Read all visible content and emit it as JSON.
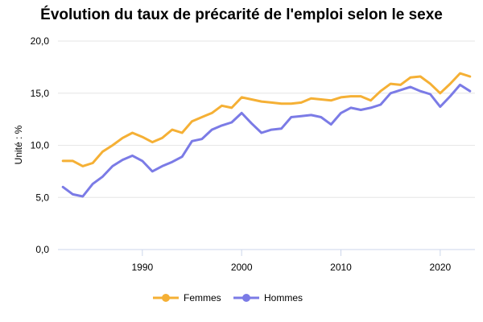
{
  "chart_data": {
    "type": "line",
    "title": "Évolution du taux de précarité de l'emploi selon le sexe",
    "ylabel": "Unité : %",
    "xlabel": "",
    "ylim": [
      0,
      20
    ],
    "xlim": [
      1981.5,
      2023.5
    ],
    "yticks": [
      0,
      5,
      10,
      15,
      20
    ],
    "ytick_labels": [
      "0,0",
      "5,0",
      "10,0",
      "15,0",
      "20,0"
    ],
    "xticks": [
      1990,
      2000,
      2010,
      2020
    ],
    "xtick_labels": [
      "1990",
      "2000",
      "2010",
      "2020"
    ],
    "grid": true,
    "legend_position": "bottom-center",
    "x": [
      1982,
      1983,
      1984,
      1985,
      1986,
      1987,
      1988,
      1989,
      1990,
      1991,
      1992,
      1993,
      1994,
      1995,
      1996,
      1997,
      1998,
      1999,
      2000,
      2001,
      2002,
      2003,
      2004,
      2005,
      2006,
      2007,
      2008,
      2009,
      2010,
      2011,
      2012,
      2013,
      2014,
      2015,
      2016,
      2017,
      2018,
      2019,
      2020,
      2021,
      2022,
      2023
    ],
    "series": [
      {
        "name": "Femmes",
        "color": "#f5b035",
        "values": [
          8.5,
          8.5,
          8.0,
          8.3,
          9.4,
          10.0,
          10.7,
          11.2,
          10.8,
          10.3,
          10.7,
          11.5,
          11.2,
          12.3,
          12.7,
          13.1,
          13.8,
          13.6,
          14.6,
          14.4,
          14.2,
          14.1,
          14.0,
          14.0,
          14.1,
          14.5,
          14.4,
          14.3,
          14.6,
          14.7,
          14.7,
          14.3,
          15.2,
          15.9,
          15.8,
          16.5,
          16.6,
          15.9,
          15.0,
          15.9,
          16.9,
          16.6
        ]
      },
      {
        "name": "Hommes",
        "color": "#7b7be6",
        "values": [
          6.0,
          5.3,
          5.1,
          6.3,
          7.0,
          8.0,
          8.6,
          9.0,
          8.5,
          7.5,
          8.0,
          8.4,
          8.9,
          10.4,
          10.6,
          11.5,
          11.9,
          12.2,
          13.1,
          12.1,
          11.2,
          11.5,
          11.6,
          12.7,
          12.8,
          12.9,
          12.7,
          12.0,
          13.1,
          13.6,
          13.4,
          13.6,
          13.9,
          15.0,
          15.3,
          15.6,
          15.2,
          14.9,
          13.7,
          14.7,
          15.8,
          15.2
        ]
      }
    ]
  }
}
